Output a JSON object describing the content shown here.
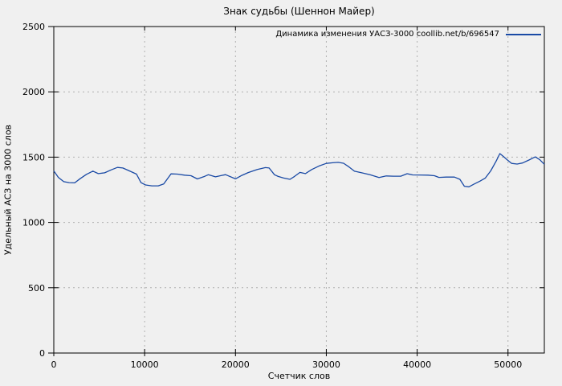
{
  "title": "Знак судьбы (Шеннон Майер)",
  "legend": {
    "label": "Динамика изменения УАСЗ-3000 coollib.net/b/696547"
  },
  "colors": {
    "background": "#f0f0f0",
    "series_line": "#1a4aa5",
    "grid": "#b0b0b0",
    "border": "#000000"
  },
  "chart_data": {
    "type": "line",
    "title": "Знак судьбы (Шеннон Майер)",
    "xlabel": "Счетчик слов",
    "ylabel": "Удельный АСЗ на 3000 слов",
    "xlim": [
      0,
      54000
    ],
    "ylim": [
      0,
      2500
    ],
    "x_ticks": [
      0,
      10000,
      20000,
      30000,
      40000,
      50000
    ],
    "y_ticks": [
      0,
      500,
      1000,
      1500,
      2000,
      2500
    ],
    "grid": true,
    "legend_position": "top-right",
    "series": [
      {
        "name": "Динамика изменения УАСЗ-3000 coollib.net/b/696547",
        "color": "#1a4aa5",
        "points": [
          [
            0,
            1395
          ],
          [
            500,
            1345
          ],
          [
            1100,
            1312
          ],
          [
            1700,
            1305
          ],
          [
            2300,
            1303
          ],
          [
            2900,
            1335
          ],
          [
            3600,
            1368
          ],
          [
            4300,
            1393
          ],
          [
            4900,
            1374
          ],
          [
            5600,
            1380
          ],
          [
            6300,
            1402
          ],
          [
            7000,
            1421
          ],
          [
            7600,
            1417
          ],
          [
            8400,
            1392
          ],
          [
            9100,
            1370
          ],
          [
            9600,
            1305
          ],
          [
            10100,
            1287
          ],
          [
            10800,
            1280
          ],
          [
            11500,
            1280
          ],
          [
            12100,
            1295
          ],
          [
            12900,
            1372
          ],
          [
            13600,
            1370
          ],
          [
            14400,
            1362
          ],
          [
            15100,
            1358
          ],
          [
            15800,
            1333
          ],
          [
            16500,
            1350
          ],
          [
            17000,
            1365
          ],
          [
            17800,
            1349
          ],
          [
            18500,
            1360
          ],
          [
            18900,
            1366
          ],
          [
            20000,
            1334
          ],
          [
            20700,
            1360
          ],
          [
            21400,
            1382
          ],
          [
            22400,
            1406
          ],
          [
            23300,
            1420
          ],
          [
            23700,
            1417
          ],
          [
            24300,
            1365
          ],
          [
            24700,
            1352
          ],
          [
            25300,
            1340
          ],
          [
            26000,
            1330
          ],
          [
            26500,
            1352
          ],
          [
            27100,
            1383
          ],
          [
            27700,
            1374
          ],
          [
            28400,
            1405
          ],
          [
            29200,
            1432
          ],
          [
            30000,
            1452
          ],
          [
            30700,
            1457
          ],
          [
            31300,
            1460
          ],
          [
            31900,
            1453
          ],
          [
            32500,
            1425
          ],
          [
            33100,
            1392
          ],
          [
            33900,
            1380
          ],
          [
            34800,
            1365
          ],
          [
            35800,
            1344
          ],
          [
            36600,
            1356
          ],
          [
            37400,
            1354
          ],
          [
            38200,
            1354
          ],
          [
            38900,
            1373
          ],
          [
            39500,
            1364
          ],
          [
            40300,
            1363
          ],
          [
            41200,
            1362
          ],
          [
            41900,
            1358
          ],
          [
            42400,
            1345
          ],
          [
            43200,
            1347
          ],
          [
            44100,
            1347
          ],
          [
            44700,
            1330
          ],
          [
            45200,
            1277
          ],
          [
            45700,
            1273
          ],
          [
            46300,
            1295
          ],
          [
            46900,
            1316
          ],
          [
            47500,
            1340
          ],
          [
            48100,
            1395
          ],
          [
            48700,
            1470
          ],
          [
            49100,
            1527
          ],
          [
            49500,
            1505
          ],
          [
            49900,
            1480
          ],
          [
            50400,
            1452
          ],
          [
            51000,
            1447
          ],
          [
            51600,
            1455
          ],
          [
            52300,
            1478
          ],
          [
            53000,
            1502
          ],
          [
            53500,
            1480
          ],
          [
            54000,
            1445
          ]
        ]
      }
    ]
  }
}
